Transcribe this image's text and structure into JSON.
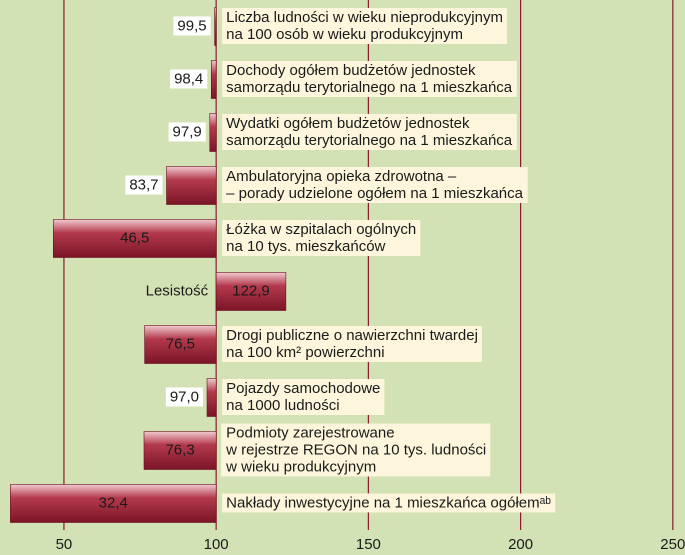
{
  "chart_data": {
    "type": "bar",
    "orientation": "horizontal",
    "baseline": 100,
    "categories": [
      "Liczba ludności w wieku nieprodukcyjnym\nna 100 osób w wieku produkcyjnym",
      "Dochody ogółem budżetów jednostek\nsamorządu terytorialnego na 1 mieszkańca",
      "Wydatki ogółem budżetów jednostek\nsamorządu terytorialnego na 1 mieszkańca",
      "Ambulatoryjna opieka zdrowotna –\n– porady udzielone ogółem na 1 mieszkańca",
      "Łóżka w szpitalach ogólnych\nna 10 tys. mieszkańców",
      "Lesistość",
      "Drogi publiczne o nawierzchni twardej\nna 100 km² powierzchni",
      "Pojazdy samochodowe\nna 1000 ludności",
      "Podmioty zarejestrowane\nw rejestrze REGON na 10 tys. ludności\nw wieku produkcyjnym",
      "Nakłady inwestycyjne na 1 mieszkańca ogółemᵃᵇ"
    ],
    "values": [
      99.5,
      98.4,
      97.9,
      83.7,
      46.5,
      122.9,
      76.5,
      97.0,
      76.3,
      32.4
    ],
    "value_labels": [
      "99,5",
      "98,4",
      "97,9",
      "83,7",
      "46,5",
      "122,9",
      "76,5",
      "97,0",
      "76,3",
      "32,4"
    ],
    "color": "#9e2338",
    "xlim": [
      29,
      254
    ],
    "xticks": [
      50,
      100,
      150,
      200,
      250
    ],
    "grid": true
  }
}
